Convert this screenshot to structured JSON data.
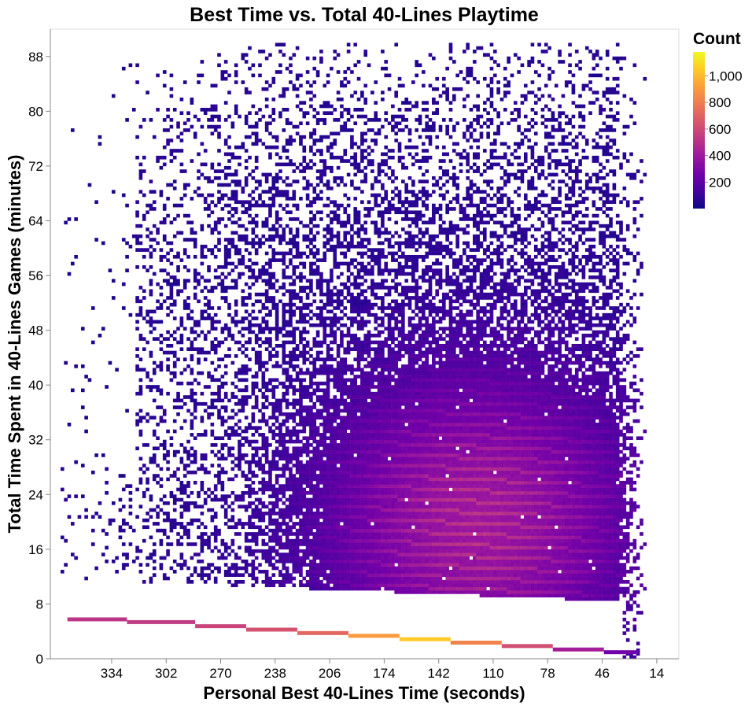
{
  "chart_data": {
    "type": "heatmap",
    "title": "Best Time vs. Total 40-Lines Playtime",
    "xlabel": "Personal Best 40-Lines Time (seconds)",
    "ylabel": "Total Time Spent in 40-Lines Games (minutes)",
    "x_reversed": true,
    "xlim": [
      370,
      1
    ],
    "ylim": [
      0,
      92
    ],
    "x_ticks": [
      334,
      302,
      270,
      238,
      206,
      174,
      142,
      110,
      78,
      46,
      14
    ],
    "x_tick_labels": [
      "334",
      "302",
      "270",
      "238",
      "206",
      "174",
      "142",
      "110",
      "78",
      "46",
      "14"
    ],
    "y_ticks": [
      0,
      8,
      16,
      24,
      32,
      40,
      48,
      56,
      64,
      72,
      80,
      88
    ],
    "y_tick_labels": [
      "0",
      "8",
      "16",
      "24",
      "32",
      "40",
      "48",
      "56",
      "64",
      "72",
      "80",
      "88"
    ],
    "color_scale": {
      "name": "plasma",
      "domain": [
        1,
        1180
      ],
      "colors": [
        "#0d0887",
        "#46039f",
        "#7201a8",
        "#9c179e",
        "#bd3786",
        "#d8576b",
        "#ed7953",
        "#fb9f3a",
        "#fdca26",
        "#f0f921"
      ]
    },
    "legend": {
      "title": "Count",
      "ticks": [
        200,
        400,
        600,
        800,
        1000
      ],
      "tick_labels": [
        "200",
        "400",
        "600",
        "800",
        "1,000"
      ],
      "position": "top-right"
    },
    "density_bands": [
      {
        "x_from": 360,
        "x_to": 325,
        "y": 5.7,
        "count": 520
      },
      {
        "x_from": 325,
        "x_to": 285,
        "y": 5.3,
        "count": 540
      },
      {
        "x_from": 285,
        "x_to": 255,
        "y": 4.7,
        "count": 580
      },
      {
        "x_from": 255,
        "x_to": 225,
        "y": 4.2,
        "count": 640
      },
      {
        "x_from": 225,
        "x_to": 195,
        "y": 3.7,
        "count": 720
      },
      {
        "x_from": 195,
        "x_to": 165,
        "y": 3.3,
        "count": 900
      },
      {
        "x_from": 165,
        "x_to": 135,
        "y": 2.8,
        "count": 1050
      },
      {
        "x_from": 135,
        "x_to": 105,
        "y": 2.3,
        "count": 820
      },
      {
        "x_from": 105,
        "x_to": 75,
        "y": 1.8,
        "count": 620
      },
      {
        "x_from": 75,
        "x_to": 45,
        "y": 1.3,
        "count": 420
      },
      {
        "x_from": 45,
        "x_to": 25,
        "y": 0.9,
        "count": 260
      }
    ]
  }
}
